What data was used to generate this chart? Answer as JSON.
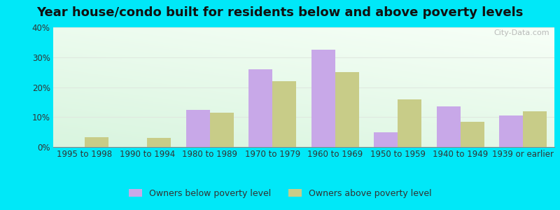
{
  "title": "Year house/condo built for residents below and above poverty levels",
  "categories": [
    "1995 to 1998",
    "1990 to 1994",
    "1980 to 1989",
    "1970 to 1979",
    "1960 to 1969",
    "1950 to 1959",
    "1940 to 1949",
    "1939 or earlier"
  ],
  "below_poverty": [
    0,
    0,
    12.5,
    26.0,
    32.5,
    5.0,
    13.5,
    10.5
  ],
  "above_poverty": [
    3.2,
    3.0,
    11.5,
    22.0,
    25.0,
    16.0,
    8.5,
    12.0
  ],
  "below_color": "#c8a8e8",
  "above_color": "#c8cc88",
  "ylim": [
    0,
    40
  ],
  "yticks": [
    0,
    10,
    20,
    30,
    40
  ],
  "ytick_labels": [
    "0%",
    "10%",
    "20%",
    "30%",
    "40%"
  ],
  "outer_bg": "#00e8f8",
  "bar_width": 0.38,
  "legend_below_label": "Owners below poverty level",
  "legend_above_label": "Owners above poverty level",
  "title_fontsize": 13,
  "tick_fontsize": 8.5,
  "bg_colors": [
    "#d8f0d8",
    "#f8fff8",
    "#ffffff"
  ],
  "grid_color": "#e0e8e0"
}
